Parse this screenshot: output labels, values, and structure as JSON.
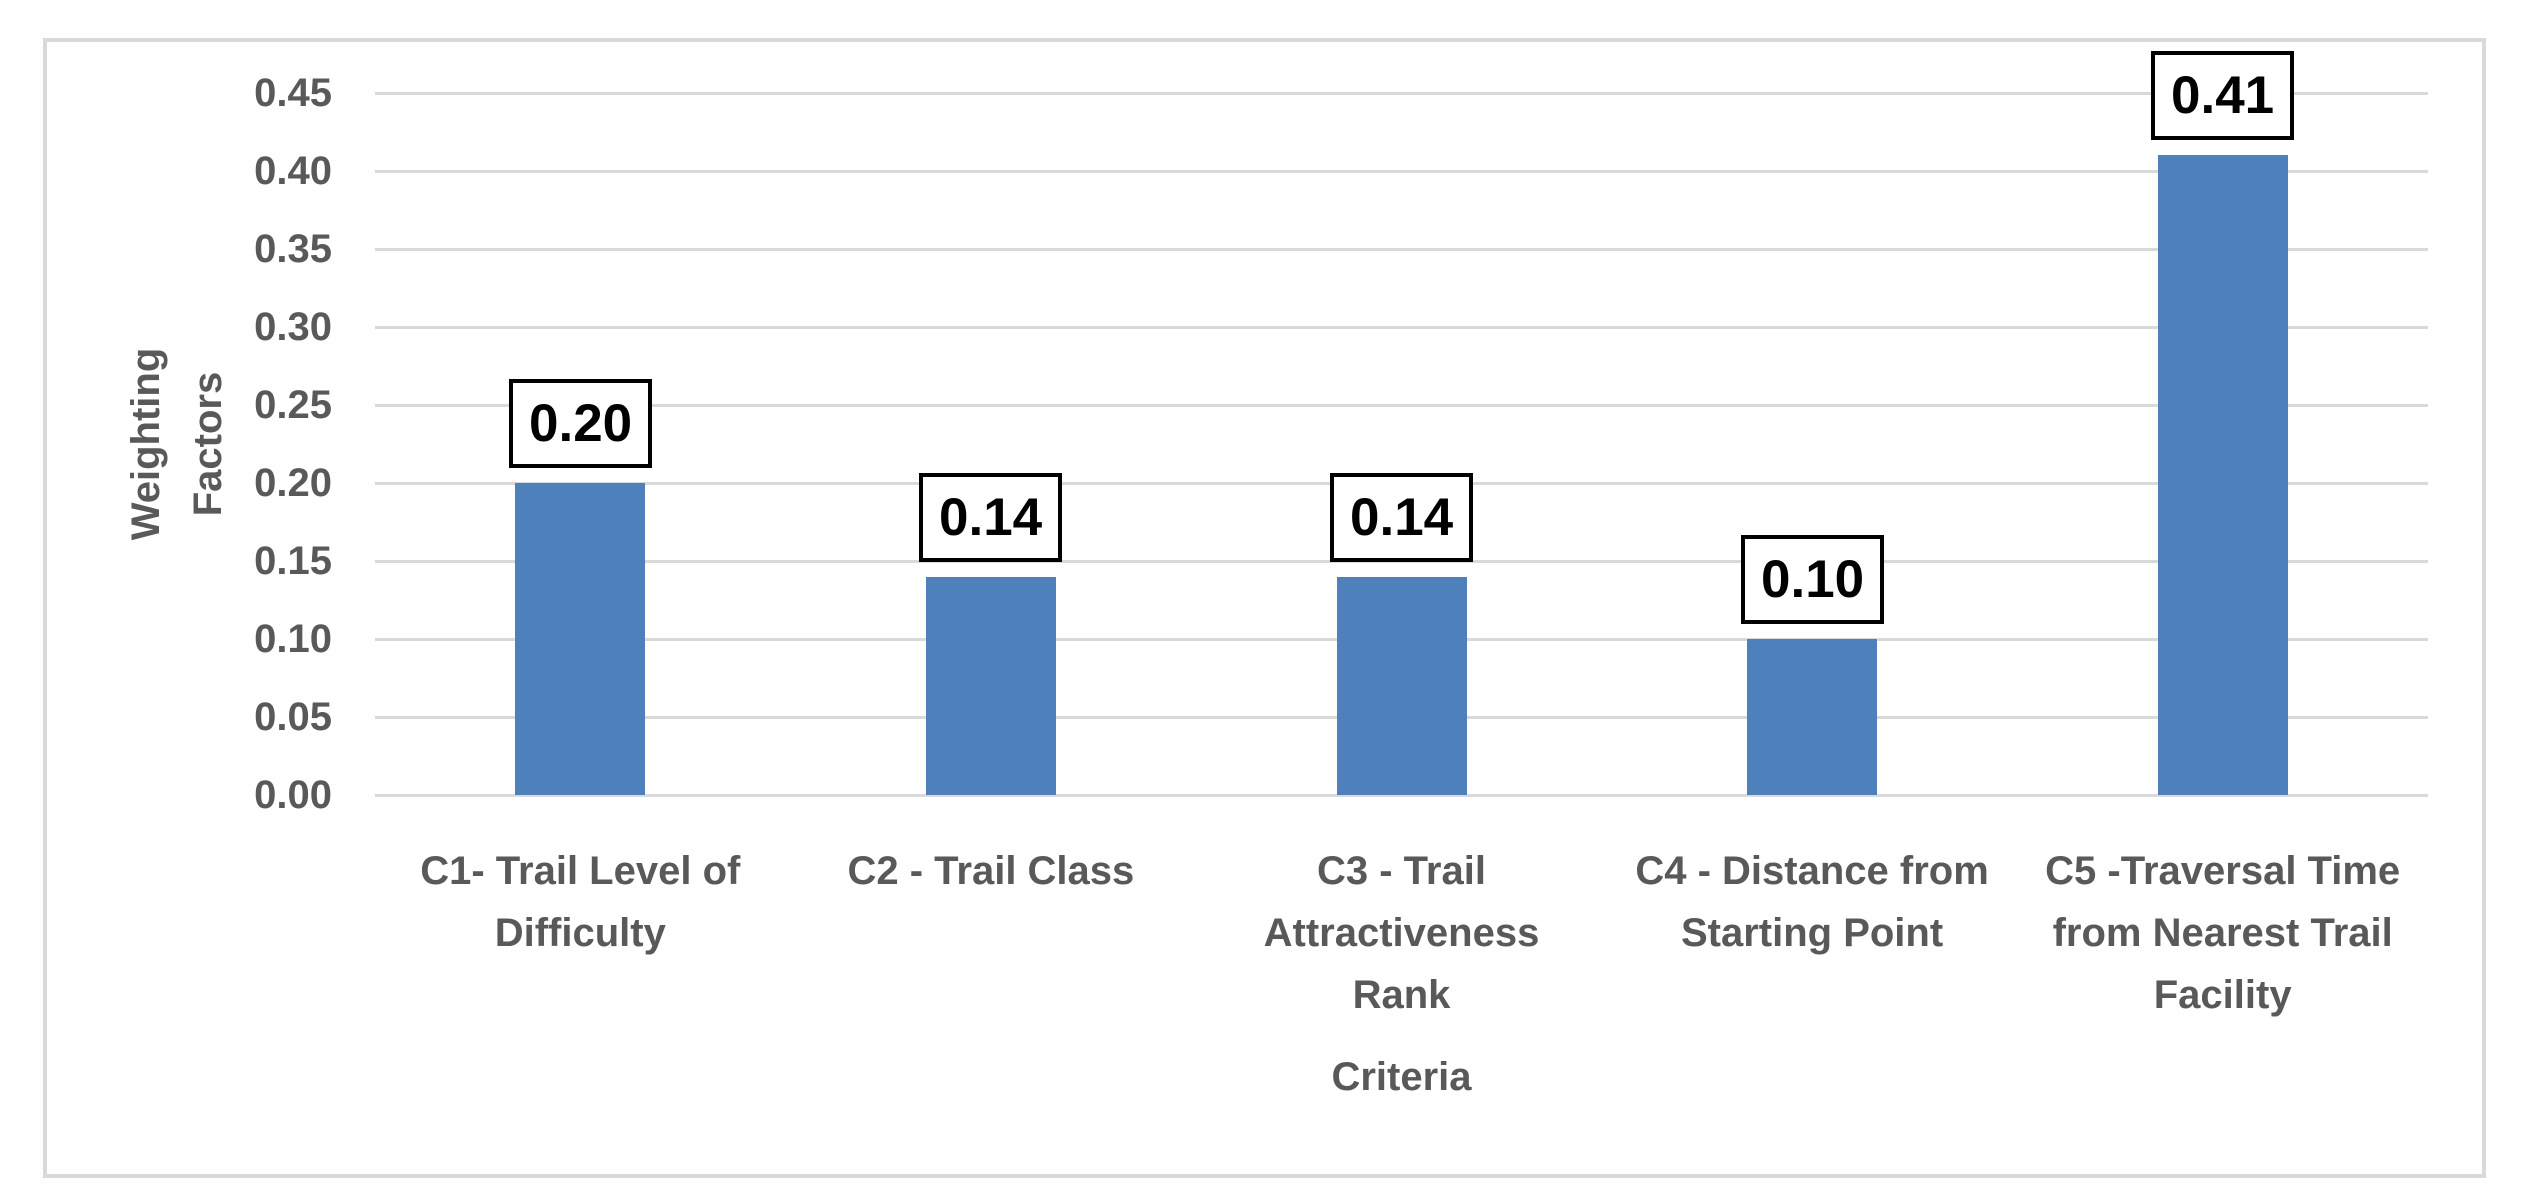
{
  "chart_data": {
    "type": "bar",
    "title": "",
    "xlabel": "Criteria",
    "ylabel": "Weighting Factors",
    "categories": [
      "C1- Trail Level of Difficulty",
      "C2 - Trail Class",
      "C3 - Trail Attractiveness Rank",
      "C4 - Distance from Starting Point",
      "C5 -Traversal Time from Nearest Trail Facility"
    ],
    "values": [
      0.2,
      0.14,
      0.14,
      0.1,
      0.41
    ],
    "data_labels": [
      "0.20",
      "0.14",
      "0.14",
      "0.10",
      "0.41"
    ],
    "ylim": [
      0,
      0.45
    ],
    "ytick_step": 0.05,
    "yticks": [
      "0.45",
      "0.40",
      "0.35",
      "0.30",
      "0.25",
      "0.20",
      "0.15",
      "0.10",
      "0.05",
      "0.00"
    ],
    "grid": true,
    "legend": "none",
    "bar_color": "#4E80BC",
    "gridline_color": "#D9D9D9",
    "axis_text_color": "#595959",
    "data_label_text_color": "#000000"
  }
}
